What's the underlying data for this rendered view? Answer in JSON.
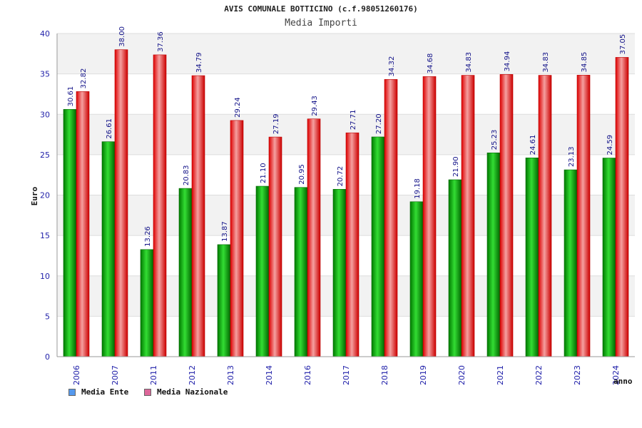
{
  "title": "AVIS COMUNALE BOTTICINO (c.f.98051260176)",
  "subtitle": "Media Importi",
  "chart_data": {
    "type": "bar",
    "ylabel": "Euro",
    "xlabel": "anno",
    "ylim": [
      0,
      40
    ],
    "yticks": [
      0,
      5,
      10,
      15,
      20,
      25,
      30,
      35,
      40
    ],
    "grid": true,
    "legend_position": "bottom-left",
    "categories": [
      "2006",
      "2007",
      "2011",
      "2012",
      "2013",
      "2014",
      "2016",
      "2017",
      "2018",
      "2019",
      "2020",
      "2021",
      "2022",
      "2023",
      "2024"
    ],
    "series": [
      {
        "name": "Media Ente",
        "color": "#00aa00",
        "legend_color": "#5599ee",
        "values": [
          30.61,
          26.61,
          13.26,
          20.83,
          13.87,
          21.1,
          20.95,
          20.72,
          27.2,
          19.18,
          21.9,
          25.23,
          24.61,
          23.13,
          24.59
        ],
        "labels": [
          "30.61",
          "26.61",
          "13.26",
          "20.83",
          "13.87",
          "21.10",
          "20.95",
          "20.72",
          "27.20",
          "19.18",
          "21.90",
          "25.23",
          "24.61",
          "23.13",
          "24.59"
        ]
      },
      {
        "name": "Media Nazionale",
        "color": "#ee1111",
        "legend_color": "#dd6699",
        "values": [
          32.82,
          38.0,
          37.36,
          34.79,
          29.24,
          27.19,
          29.43,
          27.71,
          34.32,
          34.68,
          34.83,
          34.94,
          34.83,
          34.85,
          37.05
        ],
        "labels": [
          "32.82",
          "38.00",
          "37.36",
          "34.79",
          "29.24",
          "27.19",
          "29.43",
          "27.71",
          "34.32",
          "34.68",
          "34.83",
          "34.94",
          "34.83",
          "34.85",
          "37.05"
        ]
      }
    ]
  }
}
